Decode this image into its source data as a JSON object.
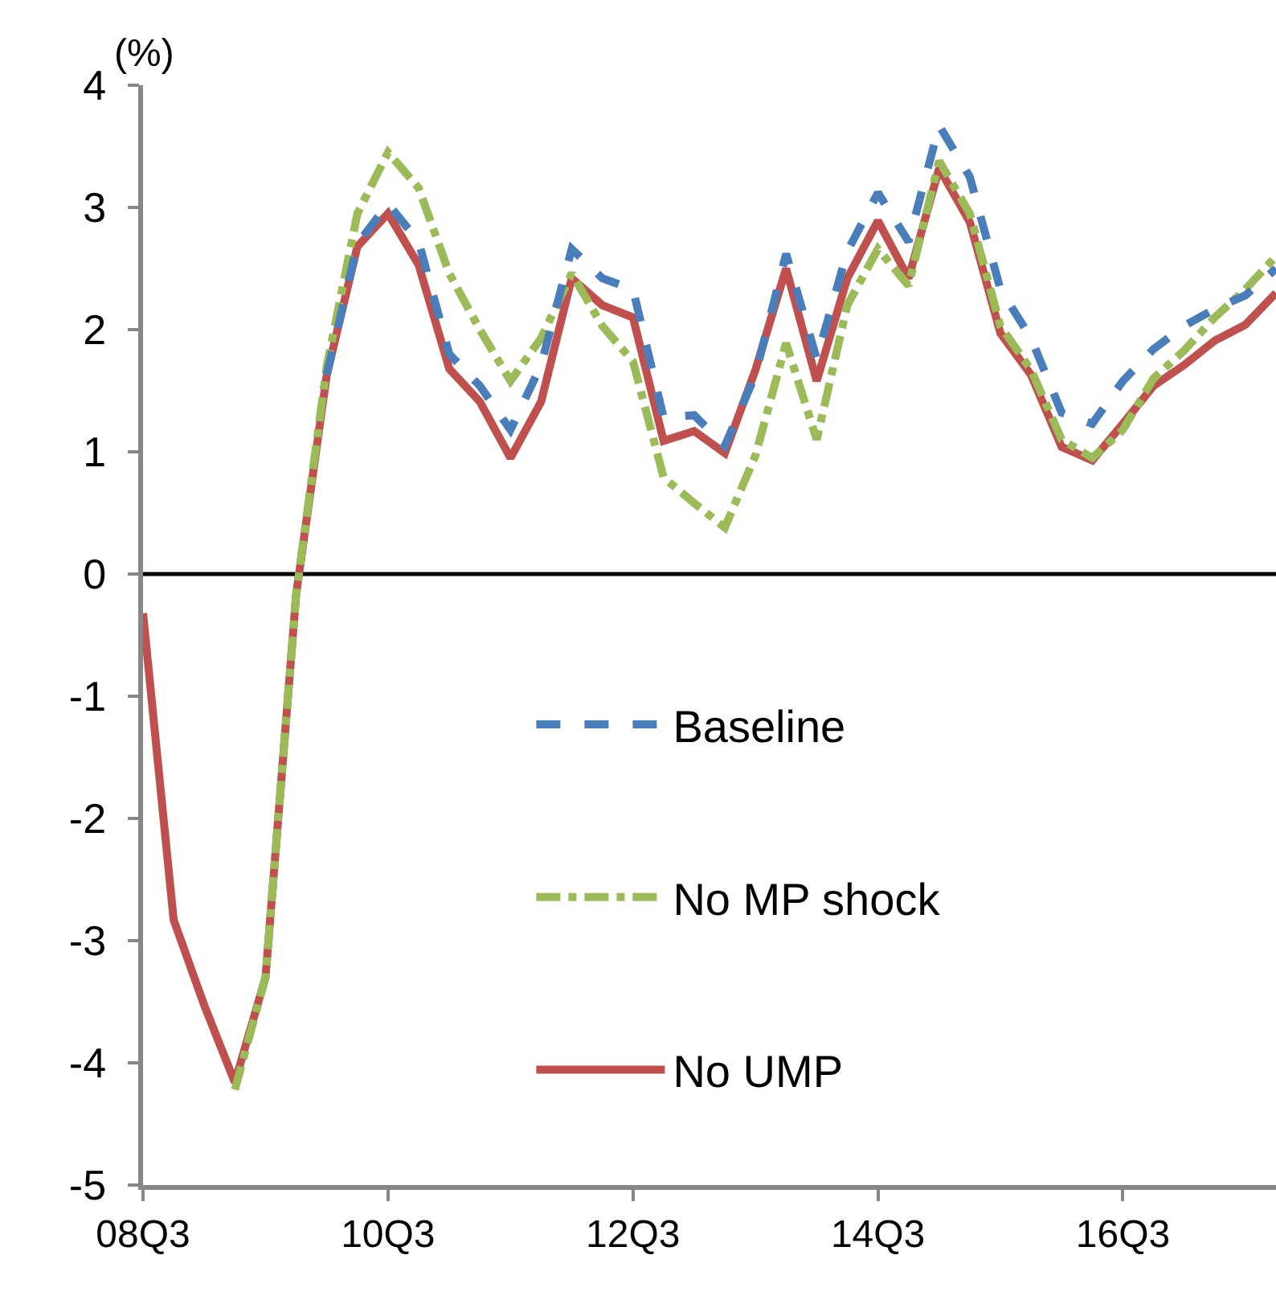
{
  "chart_data": {
    "type": "line",
    "ylabel": "(%)",
    "categories": [
      "08Q3",
      null,
      null,
      null,
      null,
      null,
      null,
      null,
      "10Q3",
      null,
      null,
      null,
      null,
      null,
      null,
      null,
      "12Q3",
      null,
      null,
      null,
      null,
      null,
      null,
      null,
      "14Q3",
      null,
      null,
      null,
      null,
      null,
      null,
      null,
      "16Q3",
      null,
      null,
      null,
      null,
      null
    ],
    "series": [
      {
        "name": "Baseline",
        "color": "#4a7ebb",
        "line_style": "dashed",
        "values": [
          null,
          null,
          null,
          null,
          null,
          null,
          1.63,
          2.7,
          3.03,
          2.72,
          1.8,
          1.54,
          1.18,
          1.71,
          2.66,
          2.42,
          2.33,
          1.28,
          1.3,
          1.05,
          1.63,
          2.62,
          1.76,
          2.64,
          3.12,
          2.72,
          3.67,
          3.25,
          2.33,
          1.93,
          1.32,
          1.23,
          1.58,
          1.84,
          2.03,
          2.17,
          2.28,
          2.5
        ]
      },
      {
        "name": "No MP shock",
        "color": "#9bbb59",
        "line_style": "dashdot",
        "values": [
          null,
          null,
          null,
          -4.22,
          -3.3,
          -0.17,
          1.7,
          2.95,
          3.45,
          3.16,
          2.46,
          2.0,
          1.58,
          1.93,
          2.46,
          2.03,
          1.74,
          0.79,
          0.58,
          0.38,
          0.97,
          1.89,
          1.1,
          2.2,
          2.66,
          2.36,
          3.38,
          2.95,
          2.03,
          1.67,
          1.1,
          0.95,
          1.18,
          1.6,
          1.83,
          2.1,
          2.33,
          2.6
        ]
      },
      {
        "name": "No UMP",
        "color": "#c0504d",
        "line_style": "solid",
        "values": [
          -0.32,
          -2.83,
          -3.53,
          -4.16,
          -3.3,
          -0.17,
          1.63,
          2.68,
          2.95,
          2.53,
          1.68,
          1.41,
          0.95,
          1.41,
          2.42,
          2.2,
          2.1,
          1.09,
          1.17,
          0.99,
          1.67,
          2.5,
          1.58,
          2.42,
          2.89,
          2.42,
          3.32,
          2.88,
          1.97,
          1.63,
          1.04,
          0.93,
          1.23,
          1.54,
          1.71,
          1.91,
          2.04,
          2.3
        ]
      }
    ],
    "ylim": [
      -5,
      4
    ],
    "yticks": [
      -5,
      -4,
      -3,
      -2,
      -1,
      0,
      1,
      2,
      3,
      4
    ],
    "ref_lines": [
      {
        "axis": "y",
        "value": 0,
        "color": "#000000"
      }
    ],
    "grid": false,
    "legend": "center right",
    "marker": "none"
  }
}
